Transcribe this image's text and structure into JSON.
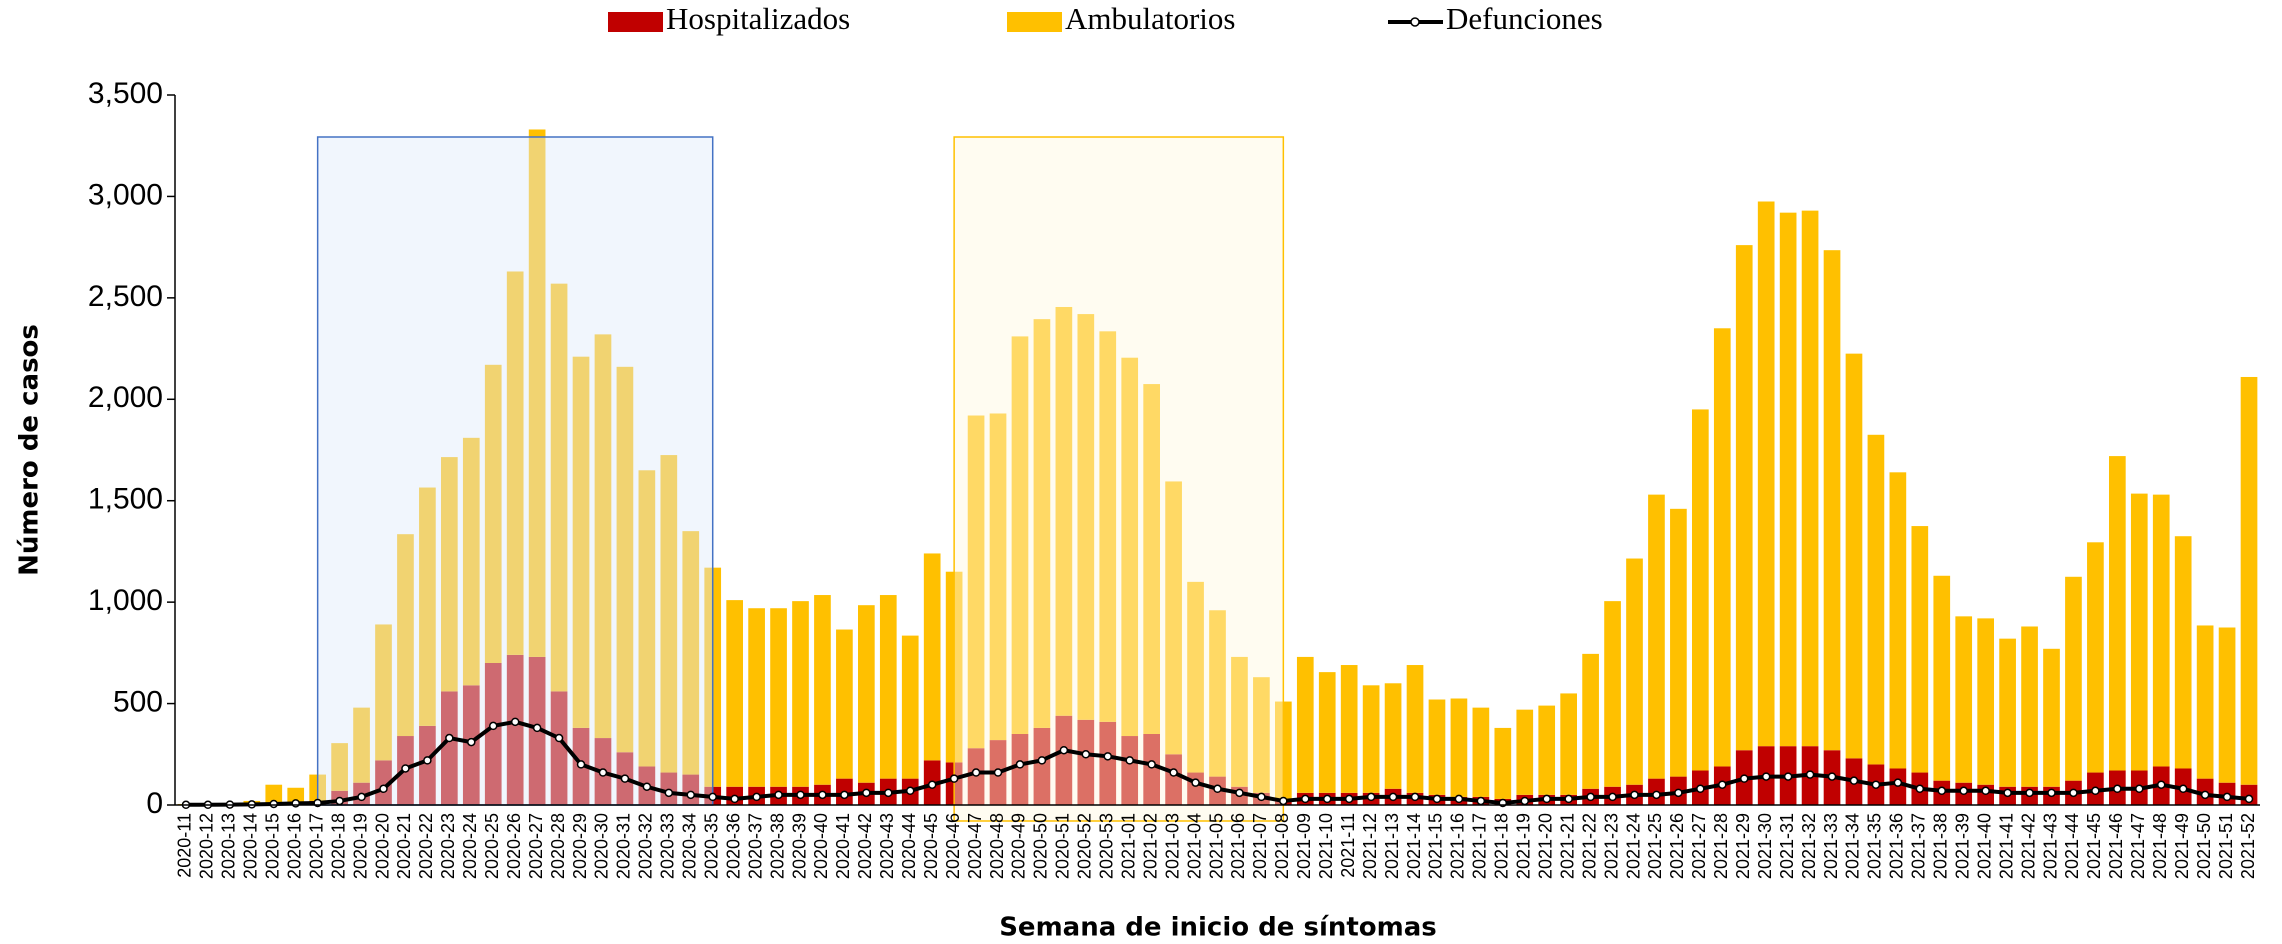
{
  "chart_data": {
    "type": "bar",
    "stacked": true,
    "y_label": "Número de casos",
    "x_label": "Semana de inicio de síntomas",
    "categories": [
      "2020-11",
      "2020-12",
      "2020-13",
      "2020-14",
      "2020-15",
      "2020-16",
      "2020-17",
      "2020-18",
      "2020-19",
      "2020-20",
      "2020-21",
      "2020-22",
      "2020-23",
      "2020-24",
      "2020-25",
      "2020-26",
      "2020-27",
      "2020-28",
      "2020-29",
      "2020-30",
      "2020-31",
      "2020-32",
      "2020-33",
      "2020-34",
      "2020-35",
      "2020-36",
      "2020-37",
      "2020-38",
      "2020-39",
      "2020-40",
      "2020-41",
      "2020-42",
      "2020-43",
      "2020-44",
      "2020-45",
      "2020-46",
      "2020-47",
      "2020-48",
      "2020-49",
      "2020-50",
      "2020-51",
      "2020-52",
      "2020-53",
      "2021-01",
      "2021-02",
      "2021-03",
      "2021-04",
      "2021-05",
      "2021-06",
      "2021-07",
      "2021-08",
      "2021-09",
      "2021-10",
      "2021-11",
      "2021-12",
      "2021-13",
      "2021-14",
      "2021-15",
      "2021-16",
      "2021-17",
      "2021-18",
      "2021-19",
      "2021-20",
      "2021-21",
      "2021-22",
      "2021-23",
      "2021-24",
      "2021-25",
      "2021-26",
      "2021-27",
      "2021-28",
      "2021-29",
      "2021-30",
      "2021-31",
      "2021-32",
      "2021-33",
      "2021-34",
      "2021-35",
      "2021-36",
      "2021-37",
      "2021-38",
      "2021-39",
      "2021-40",
      "2021-41",
      "2021-42",
      "2021-43",
      "2021-44",
      "2021-45",
      "2021-46",
      "2021-47",
      "2021-48",
      "2021-49",
      "2021-50",
      "2021-51",
      "2021-52"
    ],
    "series": [
      {
        "name": "Hospitalizados",
        "type": "bar",
        "color": "#c00000",
        "values": [
          2,
          2,
          3,
          5,
          10,
          10,
          20,
          70,
          110,
          220,
          340,
          390,
          560,
          590,
          700,
          740,
          730,
          560,
          380,
          330,
          260,
          190,
          160,
          150,
          90,
          90,
          90,
          90,
          90,
          100,
          130,
          110,
          130,
          130,
          220,
          210,
          280,
          320,
          350,
          380,
          440,
          420,
          410,
          340,
          350,
          250,
          160,
          140,
          90,
          60,
          30,
          60,
          60,
          60,
          60,
          80,
          60,
          50,
          40,
          40,
          30,
          50,
          50,
          50,
          80,
          90,
          100,
          130,
          140,
          170,
          190,
          270,
          290,
          290,
          290,
          270,
          230,
          200,
          180,
          160,
          120,
          110,
          100,
          90,
          90,
          90,
          120,
          160,
          170,
          170,
          190,
          180,
          130,
          110,
          100
        ]
      },
      {
        "name": "Ambulatorios",
        "type": "bar",
        "color": "#ffc000",
        "values": [
          3,
          3,
          7,
          15,
          90,
          75,
          130,
          235,
          370,
          670,
          995,
          1175,
          1155,
          1220,
          1470,
          1890,
          2600,
          2010,
          1830,
          1990,
          1900,
          1460,
          1565,
          1200,
          1080,
          920,
          880,
          880,
          915,
          935,
          735,
          875,
          905,
          705,
          1020,
          940,
          1640,
          1610,
          1960,
          2015,
          2015,
          2000,
          1925,
          1865,
          1725,
          1345,
          940,
          820,
          640,
          570,
          480,
          670,
          595,
          630,
          530,
          520,
          630,
          470,
          485,
          440,
          350,
          420,
          440,
          500,
          665,
          915,
          1115,
          1400,
          1320,
          1780,
          2160,
          2490,
          2685,
          2630,
          2640,
          2465,
          1995,
          1625,
          1460,
          1215,
          1010,
          820,
          820,
          730,
          790,
          680,
          1005,
          1135,
          1550,
          1365,
          1340,
          1145,
          755,
          765,
          2010
        ]
      },
      {
        "name": "Defunciones",
        "type": "line",
        "color": "#000000",
        "values": [
          1,
          1,
          2,
          3,
          5,
          8,
          10,
          20,
          40,
          80,
          180,
          220,
          330,
          310,
          390,
          410,
          380,
          330,
          200,
          160,
          130,
          90,
          60,
          50,
          40,
          30,
          40,
          50,
          50,
          50,
          50,
          60,
          60,
          70,
          100,
          130,
          160,
          160,
          200,
          220,
          270,
          250,
          240,
          220,
          200,
          160,
          110,
          80,
          60,
          40,
          20,
          30,
          30,
          30,
          40,
          40,
          40,
          30,
          30,
          20,
          10,
          20,
          30,
          30,
          40,
          40,
          50,
          50,
          60,
          80,
          100,
          130,
          140,
          140,
          150,
          140,
          120,
          100,
          110,
          80,
          70,
          70,
          70,
          60,
          60,
          60,
          60,
          70,
          80,
          80,
          100,
          80,
          50,
          40,
          30
        ]
      }
    ],
    "ylim": [
      0,
      3500
    ],
    "yticks": [
      0,
      500,
      {
        "value": 1000,
        "label": "1,000"
      },
      {
        "value": 1500,
        "label": "1,500"
      },
      {
        "value": 2000,
        "label": "2,000"
      },
      {
        "value": 2500,
        "label": "2,500"
      },
      {
        "value": 3000,
        "label": "3,000"
      },
      {
        "value": 3500,
        "label": "3,500"
      }
    ],
    "grid": false,
    "legend": "top"
  }
}
